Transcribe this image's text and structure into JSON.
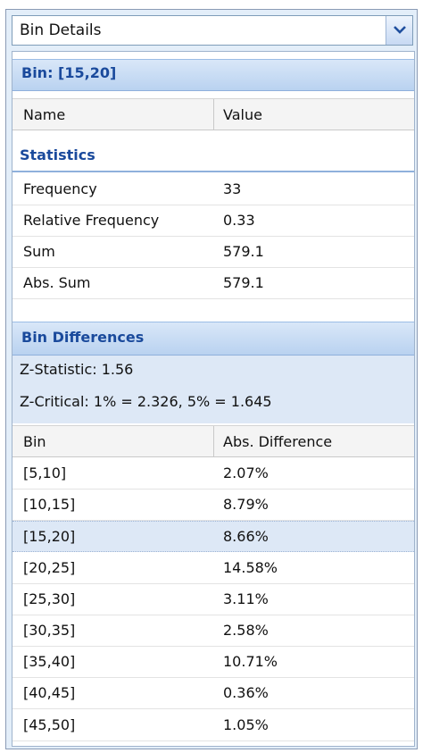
{
  "dropdown": {
    "value": "Bin Details"
  },
  "bin_section": {
    "title": "Bin: [15,20]"
  },
  "details_table": {
    "columns": [
      "Name",
      "Value"
    ],
    "group": "Statistics",
    "rows": [
      {
        "name": "Frequency",
        "value": "33"
      },
      {
        "name": "Relative Frequency",
        "value": "0.33"
      },
      {
        "name": "Sum",
        "value": "579.1"
      },
      {
        "name": "Abs. Sum",
        "value": "579.1"
      }
    ]
  },
  "differences_section": {
    "title": "Bin Differences",
    "z_statistic": "Z-Statistic: 1.56",
    "z_critical": "Z-Critical: 1% = 2.326, 5% = 1.645",
    "columns": [
      "Bin",
      "Abs. Difference"
    ],
    "selected_bin": "[15,20]",
    "rows": [
      {
        "bin": "[5,10]",
        "diff": "2.07%"
      },
      {
        "bin": "[10,15]",
        "diff": "8.79%"
      },
      {
        "bin": "[15,20]",
        "diff": "8.66%"
      },
      {
        "bin": "[20,25]",
        "diff": "14.58%"
      },
      {
        "bin": "[25,30]",
        "diff": "3.11%"
      },
      {
        "bin": "[30,35]",
        "diff": "2.58%"
      },
      {
        "bin": "[35,40]",
        "diff": "10.71%"
      },
      {
        "bin": "[40,45]",
        "diff": "0.36%"
      },
      {
        "bin": "[45,50]",
        "diff": "1.05%"
      }
    ]
  },
  "colors": {
    "header_text": "#1a4a9c",
    "header_bg_top": "#d9e7f8",
    "header_bg_bottom": "#b9d2f0",
    "selected_row": "#dde8f6"
  },
  "icons": {
    "dropdown": "chevron-down-icon"
  }
}
